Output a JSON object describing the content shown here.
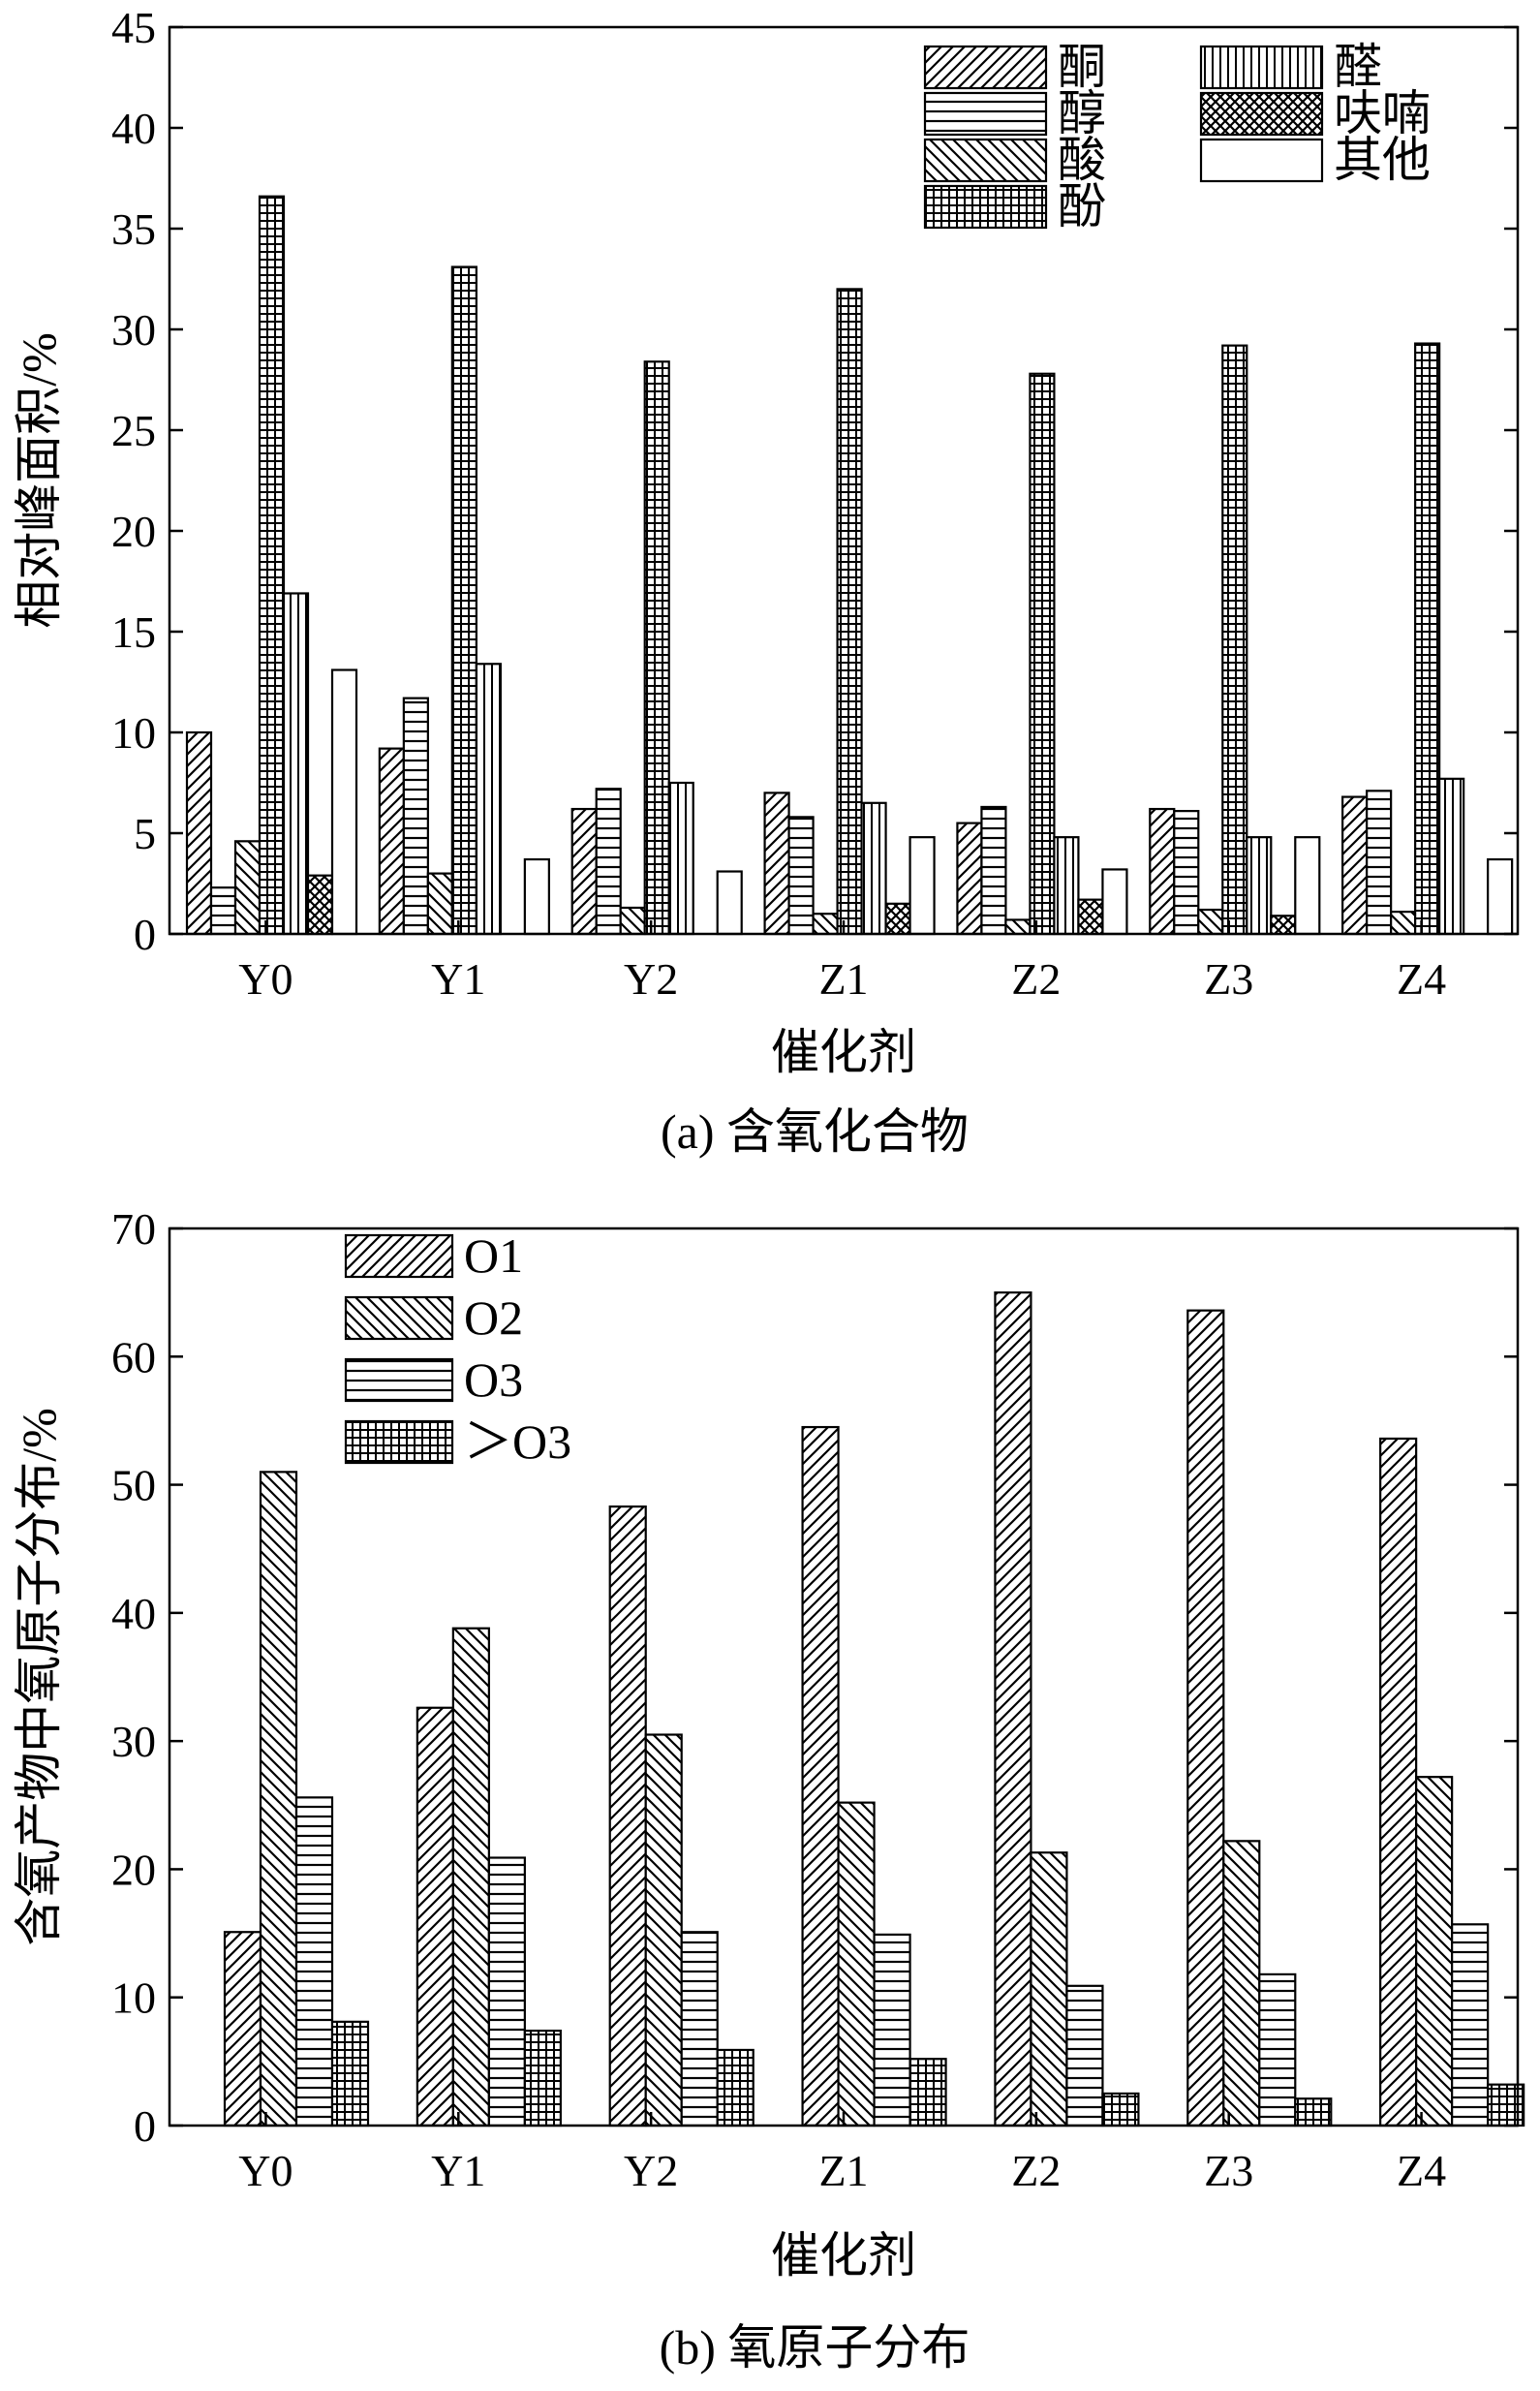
{
  "chart_data": [
    {
      "type": "bar",
      "caption": "(a) 含氧化合物",
      "xlabel": "催化剂",
      "ylabel": "相对峰面积/%",
      "ylim": [
        0,
        45
      ],
      "yticks": [
        0,
        5,
        10,
        15,
        20,
        25,
        30,
        35,
        40,
        45
      ],
      "categories": [
        "Y0",
        "Y1",
        "Y2",
        "Z1",
        "Z2",
        "Z3",
        "Z4"
      ],
      "legend_position": "top-right",
      "series": [
        {
          "name": "酮",
          "pattern": "diag-right",
          "values": [
            10.0,
            9.2,
            6.2,
            7.0,
            5.5,
            6.2,
            6.8
          ]
        },
        {
          "name": "醇",
          "pattern": "horizontal",
          "values": [
            2.3,
            11.7,
            7.2,
            5.8,
            6.3,
            6.1,
            7.1
          ]
        },
        {
          "name": "酸",
          "pattern": "diag-left",
          "values": [
            4.6,
            3.0,
            1.3,
            1.0,
            0.7,
            1.2,
            1.1
          ]
        },
        {
          "name": "酚",
          "pattern": "grid",
          "values": [
            36.6,
            33.1,
            28.4,
            32.0,
            27.8,
            29.2,
            29.3
          ]
        },
        {
          "name": "醛",
          "pattern": "vertical",
          "values": [
            16.9,
            13.4,
            7.5,
            6.5,
            4.8,
            4.8,
            7.7
          ]
        },
        {
          "name": "呋喃",
          "pattern": "crosshatch",
          "values": [
            2.9,
            0,
            0,
            1.5,
            1.7,
            0.9,
            0
          ]
        },
        {
          "name": "其他",
          "pattern": "blank",
          "values": [
            13.1,
            3.7,
            3.1,
            4.8,
            3.2,
            4.8,
            3.7
          ]
        }
      ]
    },
    {
      "type": "bar",
      "caption": "(b) 氧原子分布",
      "xlabel": "催化剂",
      "ylabel": "含氧产物中氧原子分布/%",
      "ylim": [
        0,
        70
      ],
      "yticks": [
        0,
        10,
        20,
        30,
        40,
        50,
        60,
        70
      ],
      "categories": [
        "Y0",
        "Y1",
        "Y2",
        "Z1",
        "Z2",
        "Z3",
        "Z4"
      ],
      "legend_position": "top-left",
      "series": [
        {
          "name": "O1",
          "pattern": "diag-right",
          "values": [
            15.1,
            32.6,
            48.3,
            54.5,
            65.0,
            63.6,
            53.6
          ]
        },
        {
          "name": "O2",
          "pattern": "diag-left",
          "values": [
            51.0,
            38.8,
            30.5,
            25.2,
            21.3,
            22.2,
            27.2
          ]
        },
        {
          "name": "O3",
          "pattern": "horizontal",
          "values": [
            25.6,
            20.9,
            15.1,
            14.9,
            10.9,
            11.8,
            15.7
          ]
        },
        {
          "name": "＞O3",
          "pattern": "grid",
          "values": [
            8.1,
            7.4,
            5.9,
            5.2,
            2.5,
            2.1,
            3.2
          ]
        }
      ]
    }
  ]
}
